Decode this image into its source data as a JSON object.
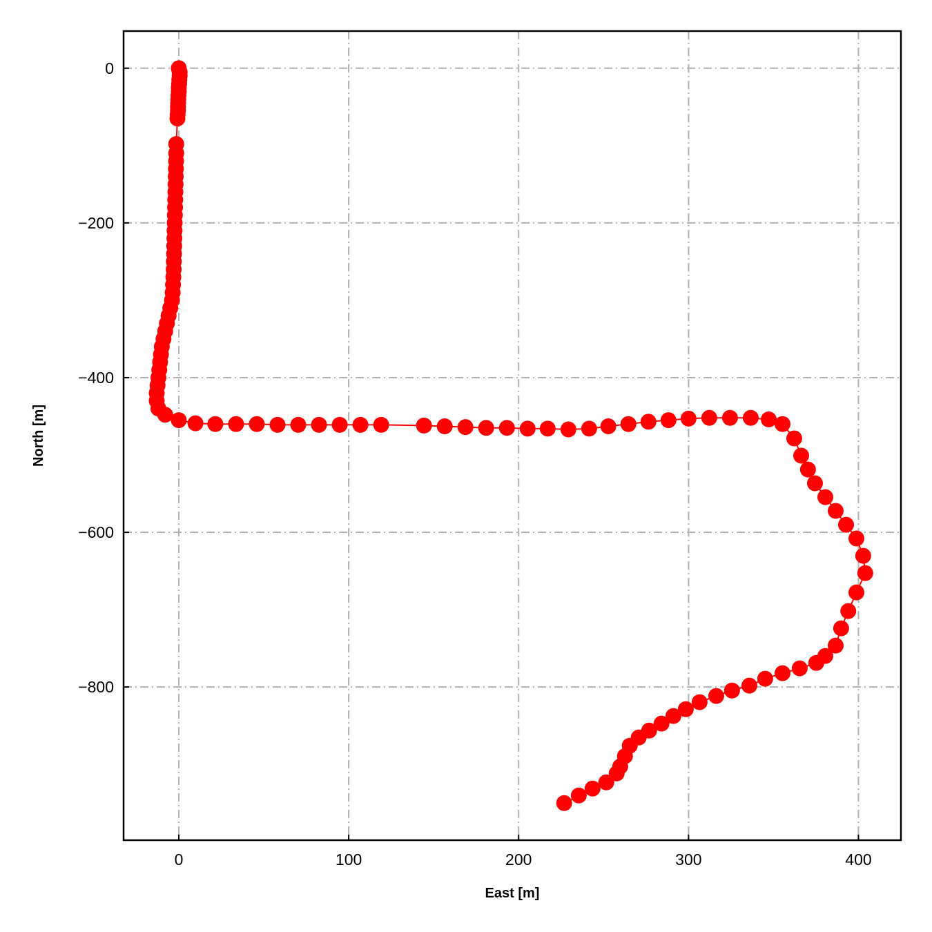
{
  "chart_data": {
    "type": "line",
    "title": "",
    "xlabel": "East [m]",
    "ylabel": "North [m]",
    "xlim": [
      -32.5,
      425
    ],
    "ylim": [
      -998,
      48
    ],
    "xticks": [
      0,
      100,
      200,
      300,
      400
    ],
    "yticks": [
      0,
      -200,
      -400,
      -600,
      -800
    ],
    "xtick_labels": [
      "0",
      "100",
      "200",
      "300",
      "400"
    ],
    "ytick_labels": [
      "0",
      "−200",
      "−400",
      "−600",
      "−800"
    ],
    "grid": true,
    "marker": "circle",
    "color": "#ff0000",
    "series": [
      {
        "x": [
          0,
          0.5,
          0.5,
          0.3,
          0.2,
          0,
          0,
          -0.2,
          -0.3,
          -0.4,
          -0.5,
          -0.5,
          -0.7,
          -0.8,
          -1.5,
          -1.5,
          -1.6,
          -1.7,
          -1.8,
          -1.9,
          -2,
          -2.1,
          -2.2,
          -2.3,
          -2.4,
          -2.5,
          -2.6,
          -2.7,
          -2.8,
          -2.9,
          -3,
          -3.2,
          -3.4,
          -3.6,
          -4,
          -5,
          -6,
          -7,
          -8,
          -9,
          -10,
          -10.5,
          -11,
          -11.5,
          -12,
          -12.5,
          -13,
          -13,
          -12,
          -8,
          0,
          9.8,
          21.5,
          33.7,
          45.9,
          58.1,
          70.3,
          82.5,
          94.7,
          106.9,
          119.1,
          144.3,
          156.5,
          168.7,
          180.9,
          193.1,
          205.3,
          217.1,
          229.3,
          241.5,
          252.8,
          264.6,
          276.4,
          288.2,
          300,
          312.2,
          324.4,
          336.6,
          347.2,
          355.3,
          362.2,
          366.3,
          370.3,
          374.4,
          380.5,
          386.6,
          392.7,
          398.8,
          402.8,
          404,
          398.8,
          394,
          389.8,
          386.6,
          380.5,
          375.2,
          365.4,
          355.3,
          345.1,
          335.8,
          325.6,
          316.3,
          306.5,
          298.4,
          291.1,
          284.1,
          276.8,
          270.7,
          265.4,
          262.6,
          259.8,
          257.7,
          251.6,
          243.5,
          235.4,
          226.8
        ],
        "y": [
          0,
          -5,
          -10,
          -15,
          -20,
          -25,
          -30,
          -35,
          -40,
          -45,
          -50,
          -55,
          -60,
          -65,
          -98,
          -110,
          -120,
          -130,
          -140,
          -150,
          -160,
          -170,
          -180,
          -190,
          -200,
          -210,
          -220,
          -230,
          -240,
          -250,
          -260,
          -270,
          -280,
          -290,
          -300,
          -310,
          -320,
          -330,
          -340,
          -350,
          -360,
          -370,
          -380,
          -390,
          -400,
          -410,
          -420,
          -430,
          -440,
          -448,
          -455,
          -459,
          -460,
          -460,
          -460,
          -461,
          -461,
          -461,
          -461,
          -461,
          -461,
          -462,
          -463,
          -464,
          -465,
          -465,
          -466,
          -466,
          -467,
          -466,
          -463,
          -460,
          -457,
          -455,
          -453,
          -452,
          -452,
          -452,
          -454,
          -460,
          -478.6,
          -500.9,
          -518.8,
          -536.6,
          -554.5,
          -572.3,
          -590.2,
          -608,
          -630.4,
          -652.7,
          -677.7,
          -701.8,
          -724.1,
          -746.4,
          -759.8,
          -768.8,
          -775.9,
          -782.1,
          -789.3,
          -798.2,
          -804.5,
          -811.6,
          -819.6,
          -828.6,
          -837.5,
          -847.3,
          -856.3,
          -865.2,
          -875.9,
          -889.3,
          -902.7,
          -911.6,
          -923.2,
          -931.3,
          -940.2,
          -950
        ]
      }
    ]
  }
}
